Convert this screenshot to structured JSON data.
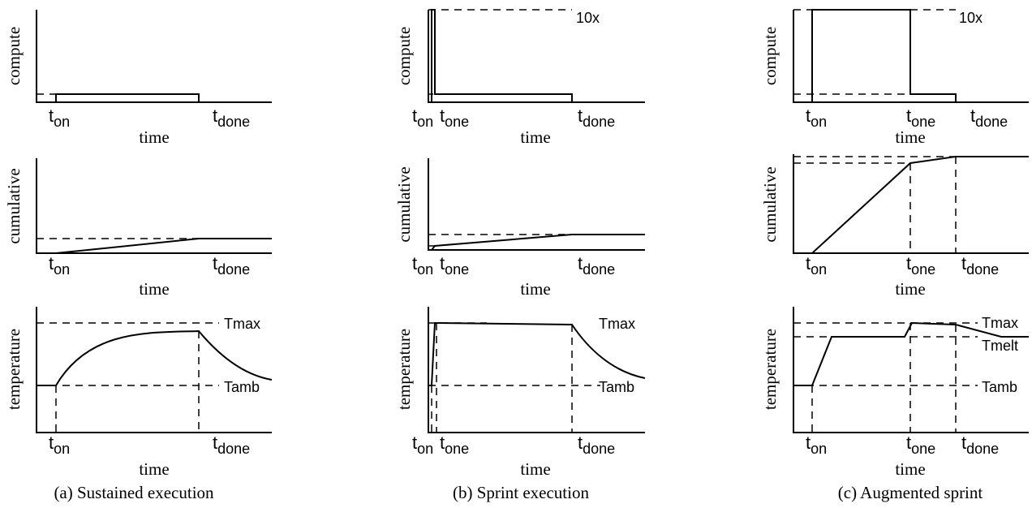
{
  "panels": [
    {
      "caption": "(a) Sustained execution",
      "labels": {
        "compute": "compute",
        "cumulative": "cumulative",
        "temperature": "temperature",
        "time": "time"
      },
      "ticks": {
        "on": "on",
        "done": "done"
      },
      "annotations": {
        "tmax": "Tmax",
        "tamb": "Tamb"
      }
    },
    {
      "caption": "(b) Sprint execution",
      "labels": {
        "compute": "compute",
        "cumulative": "cumulative",
        "temperature": "temperature",
        "time": "time"
      },
      "ticks": {
        "on": "on",
        "one": "one",
        "done": "done"
      },
      "annotations": {
        "tenx": "10x",
        "tmax": "Tmax",
        "tamb": "Tamb"
      }
    },
    {
      "caption": "(c) Augmented sprint",
      "labels": {
        "compute": "compute",
        "cumulative": "cumulative",
        "temperature": "temperature",
        "time": "time"
      },
      "ticks": {
        "on": "on",
        "one": "one",
        "done": "done"
      },
      "annotations": {
        "tenx": "10x",
        "tmax": "Tmax",
        "tmelt": "Tmelt",
        "tamb": "Tamb"
      }
    }
  ]
}
